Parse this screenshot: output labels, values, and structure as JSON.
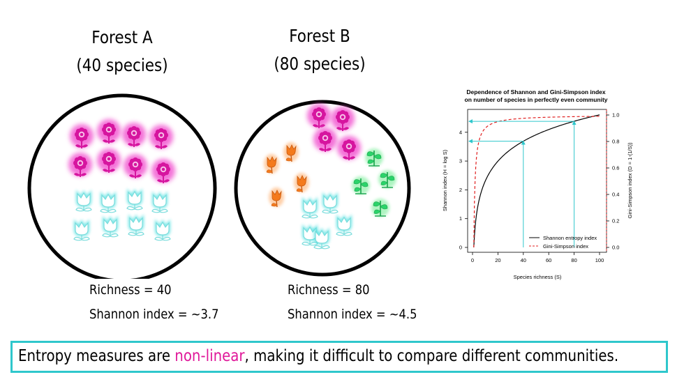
{
  "forests": [
    {
      "name": "Forest A",
      "species_label": "(40 species)",
      "richness": "Richness = 40",
      "shannon": "Shannon index = ~3.7"
    },
    {
      "name": "Forest B",
      "species_label": "(80 species)",
      "richness": "Richness = 80",
      "shannon": "Shannon index = ~4.5"
    }
  ],
  "conclusion": {
    "before": "Entropy measures are ",
    "highlight": "non-linear",
    "after": ", making it difficult to compare different communities."
  },
  "colors": {
    "flower_magenta": "#d6159f",
    "flower_glow": "#f25ad1",
    "tulip_outline": "#35dcdc",
    "tulip_orange": "#f47a1c",
    "sprout_green": "#2bd36a",
    "accent_cyan": "#2fc7cc",
    "highlight": "#e0199a",
    "shannon_line": "#000000",
    "simpson_line": "#e02020"
  },
  "chart_data": {
    "type": "line",
    "title": "Dependence of Shannon and Gini-Simpson index\non number of species in perfectly even community",
    "title_lines": [
      "Dependence of Shannon and Gini-Simpson index",
      "on number of species in perfectly even community"
    ],
    "xlabel": "Species richness (S)",
    "ylabel": "Shannon index (H = log S)",
    "ylabel_right": "Gini-Simpson index (D = 1-(1/S))",
    "xlim": [
      0,
      100
    ],
    "ylim": [
      0,
      4.6
    ],
    "ylim_right": [
      0,
      1.0
    ],
    "x_ticks": [
      "0",
      "20",
      "40",
      "60",
      "80",
      "100"
    ],
    "y_ticks": [
      "0",
      "1",
      "2",
      "3",
      "4"
    ],
    "y_ticks_right": [
      "0.0",
      "0.2",
      "0.4",
      "0.6",
      "0.8",
      "1.0"
    ],
    "series": [
      {
        "name": "Shannon entropy index",
        "formula": "log(S)",
        "axis": "left",
        "style": "solid",
        "color": "#000000"
      },
      {
        "name": "Gini-Simpson index",
        "formula": "1-1/S",
        "axis": "right",
        "style": "dashed",
        "color": "#e02020"
      }
    ],
    "annotations": [
      {
        "x": 40,
        "y": 3.69
      },
      {
        "x": 80,
        "y": 4.38
      }
    ],
    "legend": "bottom-right",
    "grid": false
  }
}
